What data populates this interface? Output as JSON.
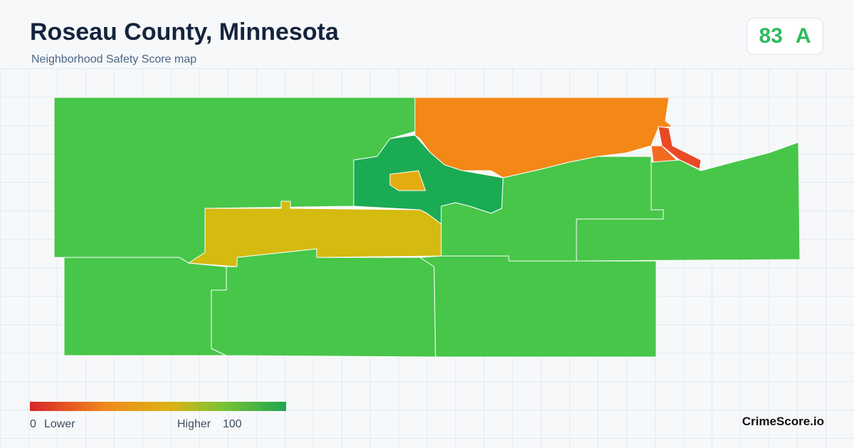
{
  "header": {
    "title": "Roseau County, Minnesota",
    "subtitle": "Neighborhood Safety Score map"
  },
  "score": {
    "value": 83,
    "grade": "A"
  },
  "legend": {
    "min": 0,
    "min_label": "Lower",
    "max_label": "Higher",
    "max": 100
  },
  "brand": "CrimeScore.io"
}
